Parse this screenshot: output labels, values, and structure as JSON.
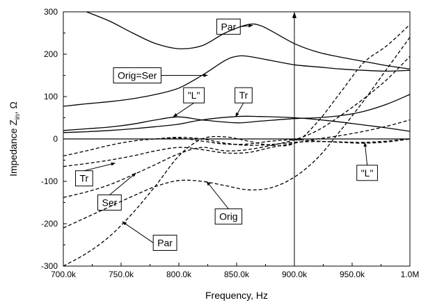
{
  "chart_data": {
    "type": "line",
    "xlabel": "Frequency, Hz",
    "ylabel_main": "Impedance Z",
    "ylabel_sub": "in",
    "ylabel_unit": ", Ω",
    "xlim": [
      700000,
      1000000
    ],
    "ylim": [
      -300,
      300
    ],
    "x_ticks": [
      {
        "value": 700000,
        "label": "700.0k"
      },
      {
        "value": 750000,
        "label": "750.0k"
      },
      {
        "value": 800000,
        "label": "800.0k"
      },
      {
        "value": 850000,
        "label": "850.0k"
      },
      {
        "value": 900000,
        "label": "900.0k"
      },
      {
        "value": 950000,
        "label": "950.0k"
      },
      {
        "value": 1000000,
        "label": "1.0M"
      }
    ],
    "y_ticks": [
      {
        "value": -300,
        "label": "-300"
      },
      {
        "value": -200,
        "label": "-200"
      },
      {
        "value": -100,
        "label": "-100"
      },
      {
        "value": 0,
        "label": "0"
      },
      {
        "value": 100,
        "label": "100"
      },
      {
        "value": 200,
        "label": "200"
      },
      {
        "value": 300,
        "label": "300"
      }
    ],
    "grid": false,
    "legend": "none",
    "reference_line": {
      "x": 900000
    },
    "series": [
      {
        "style": "solid",
        "x": [
          720000,
          740000,
          760000,
          780000,
          800000,
          820000,
          840000,
          860000,
          870000,
          880000,
          900000,
          920000,
          940000,
          960000,
          980000,
          1000000
        ],
        "y": [
          300,
          278,
          250,
          225,
          213,
          220,
          250,
          270,
          268,
          255,
          225,
          205,
          193,
          183,
          173,
          165
        ]
      },
      {
        "style": "solid",
        "x": [
          700000,
          720000,
          740000,
          760000,
          780000,
          800000,
          820000,
          840000,
          850000,
          860000,
          880000,
          900000,
          920000,
          940000,
          960000,
          980000,
          1000000
        ],
        "y": [
          77,
          83,
          88,
          95,
          105,
          120,
          150,
          185,
          195,
          195,
          185,
          175,
          170,
          165,
          162,
          160,
          162
        ]
      },
      {
        "style": "solid",
        "x": [
          700000,
          720000,
          740000,
          760000,
          780000,
          800000,
          820000,
          850000,
          870000,
          900000,
          920000,
          940000,
          960000,
          980000,
          1000000
        ],
        "y": [
          20,
          24,
          28,
          35,
          45,
          52,
          45,
          38,
          42,
          48,
          50,
          55,
          65,
          82,
          105
        ]
      },
      {
        "style": "solid",
        "x": [
          700000,
          720000,
          740000,
          760000,
          780000,
          800000,
          820000,
          850000,
          870000,
          900000,
          930000,
          960000,
          980000,
          1000000
        ],
        "y": [
          15,
          17,
          20,
          24,
          29,
          35,
          45,
          53,
          53,
          50,
          43,
          33,
          26,
          18
        ]
      },
      {
        "style": "solid",
        "x": [
          700000,
          1000000
        ],
        "y": [
          0,
          0
        ]
      },
      {
        "style": "dashed",
        "x": [
          700000,
          720000,
          740000,
          760000,
          780000,
          800000,
          820000,
          840000,
          860000,
          880000,
          900000,
          920000,
          940000,
          960000,
          980000,
          1000000
        ],
        "y": [
          -300,
          -270,
          -230,
          -175,
          -110,
          -40,
          0,
          5,
          -5,
          -15,
          -10,
          40,
          110,
          180,
          220,
          270
        ]
      },
      {
        "style": "dashed",
        "x": [
          700000,
          720000,
          740000,
          760000,
          780000,
          800000,
          820000,
          840000,
          860000,
          880000,
          900000,
          920000,
          940000,
          960000,
          980000,
          1000000
        ],
        "y": [
          -210,
          -185,
          -160,
          -135,
          -112,
          -98,
          -100,
          -110,
          -120,
          -115,
          -90,
          -45,
          20,
          90,
          165,
          240
        ]
      },
      {
        "style": "dashed",
        "x": [
          700000,
          720000,
          740000,
          760000,
          780000,
          800000,
          820000,
          840000,
          860000,
          880000,
          900000,
          920000,
          940000,
          960000,
          980000,
          1000000
        ],
        "y": [
          -138,
          -125,
          -108,
          -85,
          -60,
          -35,
          -20,
          -28,
          -25,
          -15,
          -2,
          20,
          55,
          95,
          140,
          195
        ]
      },
      {
        "style": "dashed",
        "x": [
          700000,
          720000,
          740000,
          760000,
          780000,
          800000,
          820000,
          840000,
          860000,
          880000,
          900000,
          920000,
          940000,
          960000,
          980000,
          1000000
        ],
        "y": [
          -65,
          -58,
          -50,
          -40,
          -28,
          -20,
          -25,
          -33,
          -32,
          -20,
          -10,
          0,
          8,
          18,
          30,
          45
        ]
      },
      {
        "style": "dashed",
        "x": [
          700000,
          720000,
          740000,
          760000,
          780000,
          800000,
          820000,
          840000,
          860000,
          880000,
          900000,
          920000,
          940000,
          960000,
          980000,
          1000000
        ],
        "y": [
          -40,
          -28,
          -15,
          -5,
          0,
          2,
          -5,
          -12,
          -12,
          -5,
          -2,
          -5,
          -8,
          -10,
          -7,
          0
        ]
      },
      {
        "style": "dashed",
        "x": [
          780000,
          800000,
          820000,
          840000,
          860000,
          880000,
          900000,
          920000,
          940000,
          960000,
          980000,
          1000000
        ],
        "y": [
          0,
          4,
          0,
          -10,
          -15,
          -13,
          -8,
          -6,
          -7,
          -8,
          -5,
          0
        ]
      }
    ],
    "annotations": [
      {
        "label": "Par",
        "box": [
          843000,
          265
        ],
        "tip": [
          864000,
          268
        ],
        "anchor": "right"
      },
      {
        "label": "Orig=Ser",
        "box": [
          764000,
          150
        ],
        "tip": [
          825000,
          150
        ],
        "anchor": "right"
      },
      {
        "label": "\"L\"",
        "box": [
          813000,
          103
        ],
        "tip": [
          795000,
          52
        ],
        "anchor": "bottom"
      },
      {
        "label": "Tr",
        "box": [
          856000,
          103
        ],
        "tip": [
          849000,
          52
        ],
        "anchor": "bottom"
      },
      {
        "label": "Tr",
        "box": [
          718000,
          -93
        ],
        "tip": [
          745000,
          -57
        ],
        "anchor": "top"
      },
      {
        "label": "Ser",
        "box": [
          740000,
          -150
        ],
        "tip": [
          763000,
          -80
        ],
        "anchor": "top"
      },
      {
        "label": "Orig",
        "box": [
          843000,
          -183
        ],
        "tip": [
          824000,
          -100
        ],
        "anchor": "top"
      },
      {
        "label": "Par",
        "box": [
          788000,
          -245
        ],
        "tip": [
          751000,
          -195
        ],
        "anchor": "left"
      },
      {
        "label": "\"L\"",
        "box": [
          963000,
          -80
        ],
        "tip": [
          961000,
          -8
        ],
        "anchor": "top"
      }
    ]
  }
}
